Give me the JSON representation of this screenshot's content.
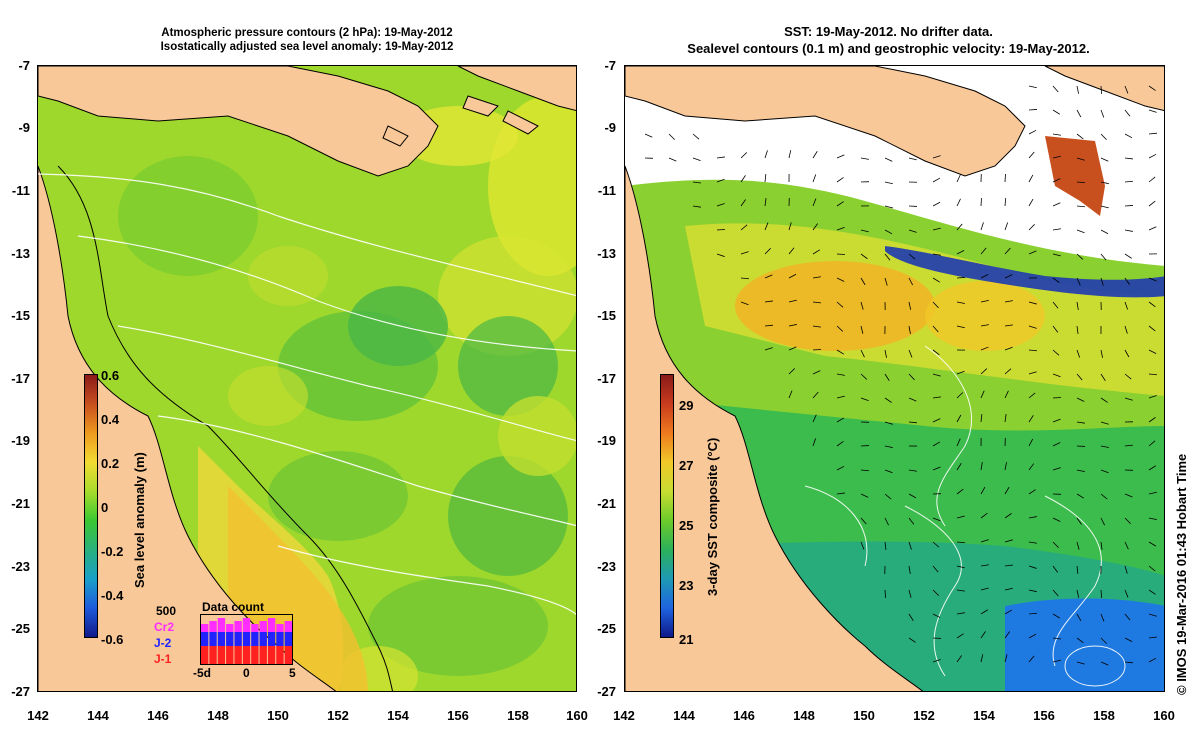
{
  "left_panel": {
    "title_line1": "Atmospheric pressure contours (2 hPa): 19-May-2012",
    "title_line2": "Isostatically adjusted sea level anomaly: 19-May-2012",
    "colorbar": {
      "label": "Sea level anomaly (m)",
      "ticks": [
        "0.6",
        "0.4",
        "0.2",
        "0",
        "-0.2",
        "-0.4",
        "-0.6"
      ],
      "colors": [
        "#8a1a1a",
        "#c8501e",
        "#ee9a1e",
        "#f2dc32",
        "#a7dc2c",
        "#3cc832",
        "#2ab07c",
        "#19a0c8",
        "#1e5adc",
        "#10198a"
      ]
    },
    "data_count": {
      "title": "Data count",
      "scale_label": "500",
      "legend": [
        {
          "name": "Cr2",
          "color": "#ff2dff"
        },
        {
          "name": "J-2",
          "color": "#2222ff"
        },
        {
          "name": "J-1",
          "color": "#ff2020"
        }
      ],
      "x_ticks": [
        "-5d",
        "0",
        "5"
      ]
    }
  },
  "right_panel": {
    "title_line1": "SST: 19-May-2012. No drifter data.",
    "title_line2": "Sealevel contours (0.1 m) and geostrophic velocity: 19-May-2012.",
    "colorbar": {
      "label": "3-day SST composite (°C)",
      "ticks": [
        "29",
        "27",
        "25",
        "23",
        "21"
      ],
      "colors": [
        "#8a1a1a",
        "#c83c1e",
        "#ee7a1e",
        "#f0c828",
        "#c8dc32",
        "#6ccc2a",
        "#2cb05a",
        "#1e9ab4",
        "#1e64e0",
        "#10198a"
      ]
    },
    "credit": "© IMOS 19-Mar-2016 01:43 Hobart Time"
  },
  "axes": {
    "y_ticks": [
      "-7",
      "-9",
      "-11",
      "-13",
      "-15",
      "-17",
      "-19",
      "-21",
      "-23",
      "-25",
      "-27"
    ],
    "x_ticks": [
      "142",
      "144",
      "146",
      "148",
      "150",
      "152",
      "154",
      "156",
      "158",
      "160"
    ],
    "lat_range": [
      -27,
      -7
    ],
    "lon_range": [
      142,
      160
    ]
  },
  "colors": {
    "land": "#f9c898",
    "coast": "#000000",
    "pressure_contour": "#ffffff"
  }
}
